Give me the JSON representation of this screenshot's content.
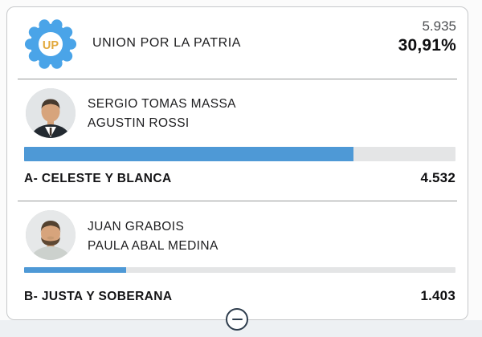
{
  "party": {
    "name": "UNION POR LA PATRIA",
    "logo_text": "UP",
    "total_votes": "5.935",
    "percent": "30,91%"
  },
  "lists": [
    {
      "candidate_1": "SERGIO TOMAS MASSA",
      "candidate_2": "AGUSTIN ROSSI",
      "label": "A- CELESTE Y BLANCA",
      "votes": "4.532",
      "bar_percent": 76.4
    },
    {
      "candidate_1": "JUAN GRABOIS",
      "candidate_2": "PAULA ABAL MEDINA",
      "label": "B- JUSTA Y SOBERANA",
      "votes": "1.403",
      "bar_percent": 23.6
    }
  ],
  "icons": {
    "party_logo": "up-sun-icon",
    "collapse": "minus-icon"
  },
  "colors": {
    "bar_fill": "#4e99d6",
    "bar_track": "#e4e5e6",
    "logo_blue": "#4aa4e8",
    "logo_gold": "#e2a93c",
    "button_outline": "#2e3d4d",
    "percent_text": "#0e0e10",
    "votes_text": "#4d4f52"
  }
}
